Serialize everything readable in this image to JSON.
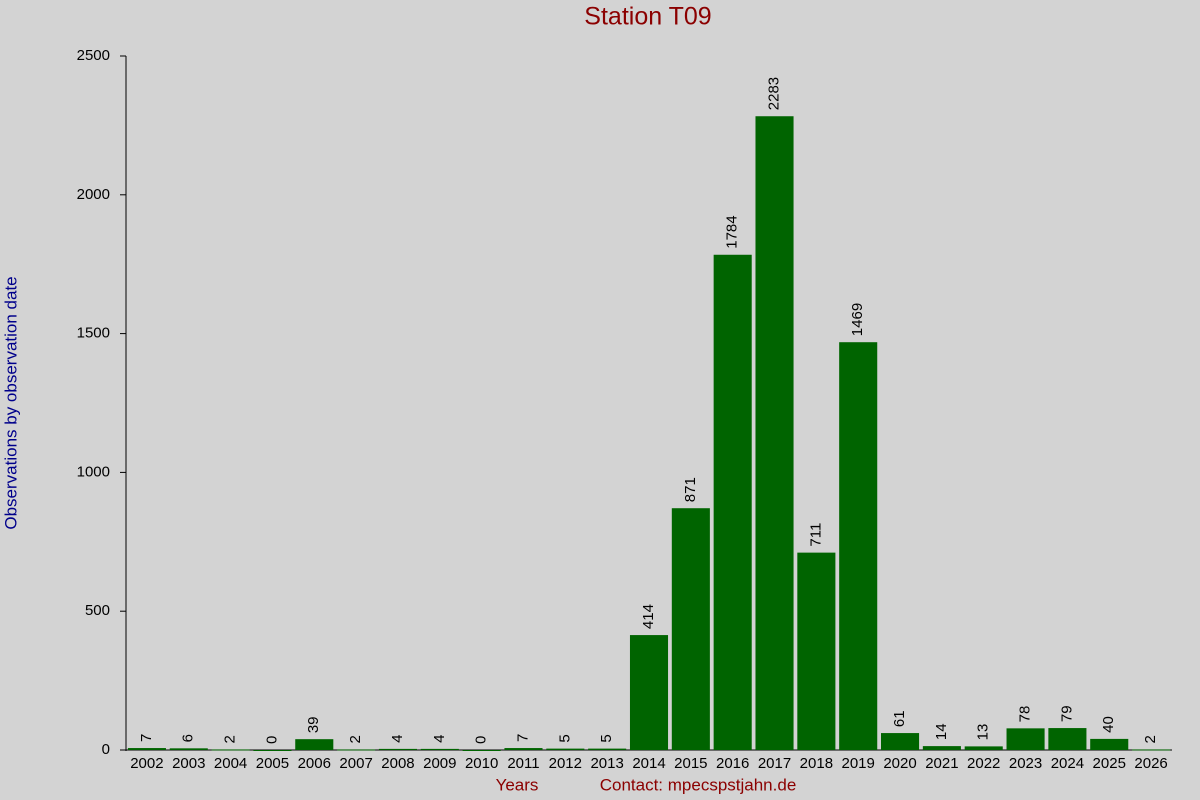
{
  "chart_data": {
    "type": "bar",
    "title": "Station T09",
    "y_label": "Observations by observation date",
    "x_label": "Years",
    "contact": "Contact: mpecspstjahn.de",
    "categories": [
      "2002",
      "2003",
      "2004",
      "2005",
      "2006",
      "2007",
      "2008",
      "2009",
      "2010",
      "2011",
      "2012",
      "2013",
      "2014",
      "2015",
      "2016",
      "2017",
      "2018",
      "2019",
      "2020",
      "2021",
      "2022",
      "2023",
      "2024",
      "2025",
      "2026"
    ],
    "values": [
      7,
      6,
      2,
      0,
      39,
      2,
      4,
      4,
      0,
      7,
      5,
      5,
      414,
      871,
      1784,
      2283,
      711,
      1469,
      61,
      14,
      13,
      78,
      79,
      40,
      2
    ],
    "color": "#006400",
    "ylim": [
      0,
      2500
    ],
    "yticks": [
      0,
      500,
      1000,
      1500,
      2000,
      2500
    ],
    "grid": false
  }
}
